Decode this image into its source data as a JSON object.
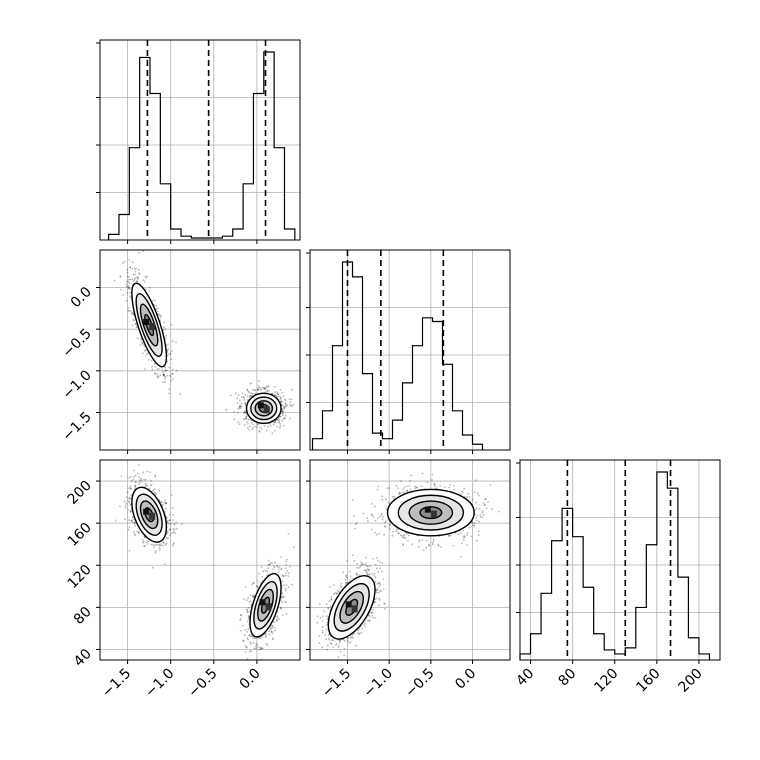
{
  "chart_data": {
    "type": "corner",
    "parameters": [
      {
        "index": 0,
        "range": [
          -1.82,
          0.5
        ],
        "ticks": [
          -1.5,
          -1.0,
          -0.5,
          0.0
        ],
        "tick_labels": [
          "−1.5",
          "−1.0",
          "−0.5",
          "0.0"
        ],
        "quantiles": [
          -1.27,
          -0.56,
          0.1
        ],
        "histogram": {
          "edges": [
            -1.72,
            -1.6,
            -1.48,
            -1.36,
            -1.24,
            -1.12,
            -1.0,
            -0.88,
            -0.76,
            -0.64,
            -0.52,
            -0.4,
            -0.28,
            -0.16,
            -0.04,
            0.08,
            0.2,
            0.32,
            0.44
          ],
          "counts": [
            0.02,
            0.13,
            0.5,
            1.0,
            0.8,
            0.3,
            0.05,
            0.01,
            0.0,
            0.0,
            0.0,
            0.01,
            0.05,
            0.3,
            0.8,
            1.03,
            0.5,
            0.05
          ]
        }
      },
      {
        "index": 1,
        "range": [
          -1.95,
          0.45
        ],
        "ticks": [
          -1.5,
          -1.0,
          -0.5,
          0.0
        ],
        "tick_labels": [
          "−1.5",
          "−1.0",
          "−0.5",
          "0.0"
        ],
        "quantiles": [
          -1.5,
          -1.1,
          -0.35
        ],
        "histogram": {
          "edges": [
            -1.92,
            -1.8,
            -1.68,
            -1.56,
            -1.44,
            -1.32,
            -1.2,
            -1.08,
            -0.96,
            -0.84,
            -0.72,
            -0.6,
            -0.48,
            -0.36,
            -0.24,
            -0.12,
            0.0,
            0.12
          ],
          "counts": [
            0.05,
            0.2,
            0.55,
            1.0,
            0.92,
            0.4,
            0.08,
            0.05,
            0.15,
            0.35,
            0.55,
            0.7,
            0.68,
            0.45,
            0.2,
            0.07,
            0.02
          ]
        }
      },
      {
        "index": 2,
        "range": [
          30,
          220
        ],
        "ticks": [
          40,
          80,
          120,
          160,
          200
        ],
        "tick_labels": [
          "40",
          "80",
          "120",
          "160",
          "200"
        ],
        "quantiles": [
          75,
          130,
          173
        ],
        "histogram": {
          "edges": [
            30,
            40,
            50,
            60,
            70,
            80,
            90,
            100,
            110,
            120,
            130,
            140,
            150,
            160,
            170,
            180,
            190,
            200,
            210
          ],
          "counts": [
            0.02,
            0.12,
            0.32,
            0.58,
            0.74,
            0.6,
            0.35,
            0.12,
            0.04,
            0.02,
            0.05,
            0.25,
            0.56,
            0.92,
            0.84,
            0.4,
            0.1,
            0.02
          ]
        }
      }
    ],
    "pairs": [
      {
        "x_param": 0,
        "y_param": 1,
        "modes": [
          {
            "center": [
              -1.25,
              -0.45
            ],
            "sd": [
              0.1,
              0.25
            ],
            "corr": -0.75,
            "weight": 0.5
          },
          {
            "center": [
              0.08,
              -1.45
            ],
            "sd": [
              0.1,
              0.09
            ],
            "corr": 0.0,
            "weight": 0.5
          }
        ]
      },
      {
        "x_param": 0,
        "y_param": 2,
        "modes": [
          {
            "center": [
              -1.25,
              168
            ],
            "sd": [
              0.1,
              13
            ],
            "corr": -0.45,
            "weight": 0.5
          },
          {
            "center": [
              0.1,
              82
            ],
            "sd": [
              0.09,
              15
            ],
            "corr": 0.55,
            "weight": 0.5
          }
        ]
      },
      {
        "x_param": 1,
        "y_param": 2,
        "modes": [
          {
            "center": [
              -1.45,
              80
            ],
            "sd": [
              0.14,
              15
            ],
            "corr": 0.55,
            "weight": 0.5
          },
          {
            "center": [
              -0.5,
              170
            ],
            "sd": [
              0.26,
              11
            ],
            "corr": 0.0,
            "weight": 0.5
          }
        ]
      }
    ],
    "contour_levels_sigma": [
      0.5,
      1.0,
      1.5,
      2.0
    ],
    "grid": true,
    "title": "",
    "axis_labels": [
      "",
      "",
      ""
    ]
  }
}
